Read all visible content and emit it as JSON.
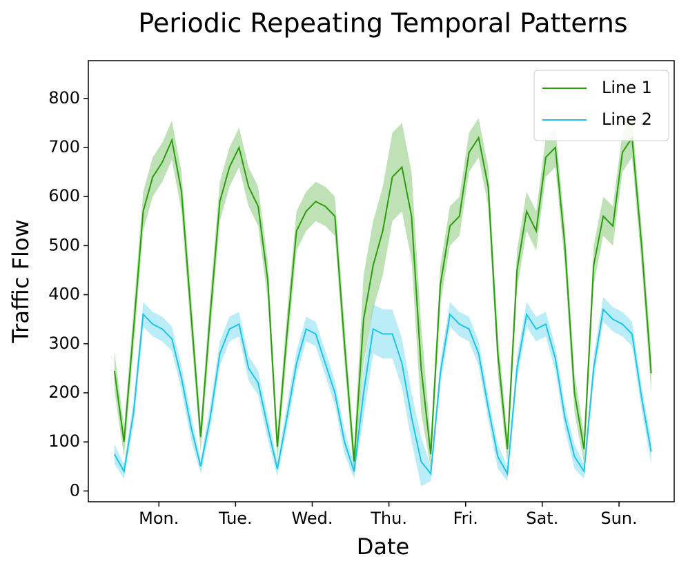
{
  "chart_data": {
    "type": "line",
    "title": "Periodic Repeating Temporal Patterns",
    "xlabel": "Date",
    "ylabel": "Traffic Flow",
    "x": [
      0.42,
      0.545,
      0.67,
      0.795,
      0.92,
      1.045,
      1.17,
      1.295,
      1.42,
      1.545,
      1.67,
      1.795,
      1.92,
      2.045,
      2.17,
      2.295,
      2.42,
      2.545,
      2.67,
      2.795,
      2.92,
      3.045,
      3.17,
      3.295,
      3.42,
      3.545,
      3.67,
      3.795,
      3.92,
      4.045,
      4.17,
      4.295,
      4.42,
      4.545,
      4.67,
      4.795,
      4.92,
      5.045,
      5.17,
      5.295,
      5.42,
      5.545,
      5.67,
      5.795,
      5.92,
      6.045,
      6.17,
      6.295,
      6.42,
      6.545,
      6.67,
      6.795,
      6.92,
      7.045,
      7.17,
      7.295,
      7.42
    ],
    "series": [
      {
        "name": "Line 1",
        "color": "#2a9d0c",
        "values": [
          245,
          100,
          330,
          570,
          640,
          670,
          715,
          610,
          360,
          110,
          360,
          590,
          660,
          700,
          620,
          580,
          430,
          90,
          320,
          530,
          570,
          590,
          580,
          560,
          300,
          60,
          350,
          460,
          530,
          640,
          660,
          560,
          250,
          75,
          420,
          540,
          560,
          690,
          720,
          620,
          280,
          85,
          450,
          570,
          530,
          680,
          700,
          500,
          200,
          85,
          460,
          560,
          540,
          690,
          720,
          500,
          240
        ],
        "errors": [
          40,
          30,
          40,
          40,
          40,
          40,
          40,
          40,
          40,
          30,
          40,
          40,
          40,
          40,
          40,
          40,
          40,
          30,
          40,
          40,
          40,
          40,
          40,
          40,
          40,
          30,
          90,
          90,
          90,
          90,
          90,
          90,
          90,
          30,
          40,
          40,
          40,
          40,
          40,
          40,
          40,
          30,
          40,
          40,
          40,
          40,
          40,
          40,
          40,
          30,
          40,
          40,
          40,
          40,
          40,
          40,
          40
        ]
      },
      {
        "name": "Line 2",
        "color": "#1ec3e8",
        "values": [
          75,
          40,
          160,
          360,
          340,
          330,
          310,
          230,
          130,
          50,
          150,
          280,
          330,
          340,
          250,
          220,
          130,
          45,
          150,
          260,
          330,
          320,
          260,
          200,
          100,
          40,
          200,
          330,
          320,
          320,
          260,
          150,
          60,
          35,
          240,
          360,
          340,
          330,
          280,
          170,
          70,
          35,
          250,
          360,
          330,
          340,
          270,
          150,
          70,
          40,
          250,
          370,
          350,
          340,
          320,
          190,
          80
        ],
        "errors": [
          20,
          15,
          25,
          25,
          25,
          25,
          25,
          25,
          25,
          15,
          25,
          25,
          25,
          25,
          25,
          25,
          25,
          15,
          25,
          25,
          25,
          25,
          25,
          25,
          25,
          15,
          50,
          50,
          50,
          50,
          50,
          50,
          50,
          15,
          25,
          25,
          25,
          25,
          25,
          25,
          25,
          15,
          25,
          25,
          25,
          25,
          25,
          25,
          25,
          15,
          25,
          25,
          25,
          25,
          25,
          25,
          25
        ]
      }
    ],
    "xlim": [
      0.08,
      7.72
    ],
    "ylim": [
      -22,
      877
    ],
    "xticks": [
      {
        "value": 1,
        "label": "Mon."
      },
      {
        "value": 2,
        "label": "Tue."
      },
      {
        "value": 3,
        "label": "Wed."
      },
      {
        "value": 4,
        "label": "Thu."
      },
      {
        "value": 5,
        "label": "Fri."
      },
      {
        "value": 6,
        "label": "Sat."
      },
      {
        "value": 7,
        "label": "Sun."
      }
    ],
    "yticks": [
      0,
      100,
      200,
      300,
      400,
      500,
      600,
      700,
      800
    ],
    "legend": "upper right"
  }
}
